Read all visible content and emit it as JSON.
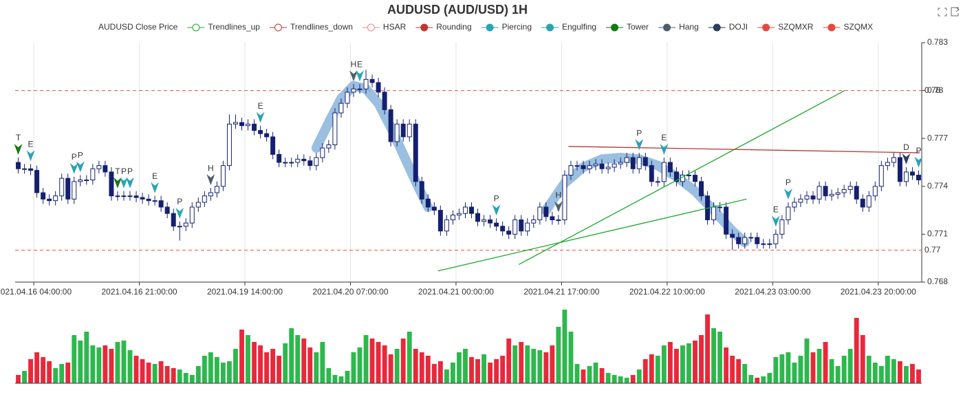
{
  "chart_data": {
    "type": "candlestick",
    "title": "AUDUSD (AUD/USD) 1H",
    "legend": [
      {
        "name": "AUDUSD Close Price",
        "color": "#14206e",
        "icon": "none"
      },
      {
        "name": "Trendlines_up",
        "color": "#1aaa2a",
        "icon": "hollow"
      },
      {
        "name": "Trendlines_down",
        "color": "#b33a35",
        "icon": "hollow"
      },
      {
        "name": "HSAR",
        "color": "#ee8888",
        "icon": "hollow"
      },
      {
        "name": "Rounding",
        "color": "#c23531",
        "icon": "filled"
      },
      {
        "name": "Piercing",
        "color": "#2aa3b5",
        "icon": "filled"
      },
      {
        "name": "Engulfing",
        "color": "#2aa3b5",
        "icon": "filled"
      },
      {
        "name": "Tower",
        "color": "#127a12",
        "icon": "filled"
      },
      {
        "name": "Hang",
        "color": "#4f5d6b",
        "icon": "filled"
      },
      {
        "name": "DOJI",
        "color": "#2c3e5a",
        "icon": "filled"
      },
      {
        "name": "SZQMXR",
        "color": "#e8483c",
        "icon": "filled"
      },
      {
        "name": "SZQMX",
        "color": "#e8483c",
        "icon": "filled"
      }
    ],
    "categories": [
      null,
      null,
      null,
      "2021.04.16 04:00:00",
      null,
      null,
      null,
      null,
      null,
      null,
      null,
      null,
      null,
      null,
      null,
      null,
      null,
      null,
      null,
      null,
      "2021.04.16 21:00:00",
      null,
      null,
      null,
      null,
      null,
      null,
      null,
      null,
      null,
      null,
      null,
      null,
      null,
      null,
      null,
      null,
      "2021.04.19 14:00:00",
      null,
      null,
      null,
      null,
      null,
      null,
      null,
      null,
      null,
      null,
      null,
      null,
      null,
      null,
      null,
      null,
      "2021.04.20 07:00:00",
      null,
      null,
      null,
      null,
      null,
      null,
      null,
      null,
      null,
      null,
      null,
      null,
      null,
      null,
      null,
      null,
      "2021.04.21 00:00:00",
      null,
      null,
      null,
      null,
      null,
      null,
      null,
      null,
      null,
      null,
      null,
      null,
      null,
      null,
      null,
      null,
      "2021.04.21 17:00:00",
      null,
      null,
      null,
      null,
      null,
      null,
      null,
      null,
      null,
      null,
      null,
      null,
      null,
      null,
      null,
      null,
      "2021.04.22 10:00:00",
      null,
      null,
      null,
      null,
      null,
      null,
      null,
      null,
      null,
      null,
      null,
      null,
      null,
      null,
      null,
      null,
      "2021.04.23 03:00:00",
      null,
      null,
      null,
      null,
      null,
      null,
      null,
      null,
      null,
      null,
      null,
      null,
      null,
      null,
      null,
      null,
      "2021.04.23 20:00:00",
      null,
      null,
      null,
      null,
      null,
      null
    ],
    "open": [
      0.7755,
      0.7751,
      0.7751,
      0.775,
      0.7736,
      0.7732,
      0.7731,
      0.7734,
      0.7745,
      0.7732,
      0.7743,
      0.7744,
      0.7744,
      0.7751,
      0.7753,
      0.7749,
      0.7734,
      0.7734,
      0.7734,
      0.7734,
      0.7733,
      0.7732,
      0.7731,
      0.7731,
      0.7727,
      0.7723,
      0.7715,
      0.7715,
      0.7717,
      0.7727,
      0.773,
      0.7734,
      0.7736,
      0.774,
      0.7753,
      0.7779,
      0.778,
      0.7778,
      0.7779,
      0.7775,
      0.7773,
      0.7771,
      0.776,
      0.7755,
      0.7755,
      0.7755,
      0.7757,
      0.7756,
      0.7753,
      0.7758,
      0.7764,
      0.7766,
      0.7786,
      0.7792,
      0.7799,
      0.7801,
      0.7801,
      0.7807,
      0.7805,
      0.7799,
      0.7788,
      0.7768,
      0.7779,
      0.7771,
      0.7779,
      0.7743,
      0.7732,
      0.7727,
      0.7725,
      0.7712,
      0.7719,
      0.7722,
      0.7723,
      0.7727,
      0.7723,
      0.7718,
      0.7719,
      0.7717,
      0.7715,
      0.7712,
      0.771,
      0.7719,
      0.7712,
      0.7717,
      0.7719,
      0.7727,
      0.7721,
      0.7719,
      0.7719,
      0.7747,
      0.7753,
      0.7753,
      0.7751,
      0.7753,
      0.7754,
      0.7751,
      0.7752,
      0.7754,
      0.7755,
      0.7758,
      0.7751,
      0.7758,
      0.7753,
      0.7743,
      0.7743,
      0.7755,
      0.7749,
      0.7743,
      0.7747,
      0.7747,
      0.7743,
      0.7734,
      0.7719,
      0.7727,
      0.7727,
      0.771,
      0.7708,
      0.7704,
      0.7708,
      0.7708,
      0.7704,
      0.7704,
      0.7704,
      0.771,
      0.7719,
      0.7727,
      0.773,
      0.7732,
      0.7734,
      0.7732,
      0.774,
      0.7734,
      0.7735,
      0.7736,
      0.7738,
      0.774,
      0.7732,
      0.7727,
      0.7734,
      0.774,
      0.7753,
      0.7755,
      0.7758,
      0.7743,
      0.7749,
      0.7747
    ],
    "high": [
      0.7758,
      0.7754,
      0.7754,
      0.7753,
      0.7739,
      0.7735,
      0.7737,
      0.7748,
      0.7748,
      0.7746,
      0.7747,
      0.7747,
      0.7754,
      0.7756,
      0.7756,
      0.7752,
      0.7737,
      0.7737,
      0.7737,
      0.7737,
      0.7736,
      0.7735,
      0.7734,
      0.7734,
      0.773,
      0.7726,
      0.7718,
      0.772,
      0.773,
      0.7733,
      0.7737,
      0.7739,
      0.7743,
      0.7756,
      0.7785,
      0.7785,
      0.7783,
      0.7782,
      0.7782,
      0.7778,
      0.7776,
      0.7774,
      0.7763,
      0.7758,
      0.7758,
      0.776,
      0.776,
      0.7759,
      0.7761,
      0.7767,
      0.7769,
      0.7789,
      0.7795,
      0.7802,
      0.7804,
      0.7804,
      0.7813,
      0.781,
      0.7808,
      0.7802,
      0.7791,
      0.7782,
      0.7782,
      0.7782,
      0.7782,
      0.7746,
      0.7735,
      0.773,
      0.7728,
      0.7722,
      0.7725,
      0.7726,
      0.773,
      0.773,
      0.7726,
      0.7722,
      0.7722,
      0.772,
      0.7718,
      0.7715,
      0.7722,
      0.7722,
      0.772,
      0.7722,
      0.773,
      0.773,
      0.7724,
      0.7722,
      0.775,
      0.7756,
      0.7756,
      0.7756,
      0.7756,
      0.7757,
      0.7757,
      0.7755,
      0.7757,
      0.7758,
      0.7761,
      0.7761,
      0.7761,
      0.7761,
      0.7756,
      0.7746,
      0.7758,
      0.7758,
      0.7752,
      0.775,
      0.775,
      0.775,
      0.7746,
      0.7737,
      0.773,
      0.773,
      0.773,
      0.7713,
      0.7711,
      0.7711,
      0.7711,
      0.7711,
      0.7707,
      0.7707,
      0.7713,
      0.7722,
      0.773,
      0.7733,
      0.7735,
      0.7737,
      0.7737,
      0.7743,
      0.7743,
      0.7738,
      0.7739,
      0.7741,
      0.7743,
      0.7743,
      0.7735,
      0.7737,
      0.7743,
      0.7756,
      0.7758,
      0.7761,
      0.7761,
      0.7752,
      0.7752,
      0.775
    ],
    "low": [
      0.7748,
      0.7748,
      0.7747,
      0.7733,
      0.7729,
      0.7728,
      0.7728,
      0.7731,
      0.7729,
      0.7729,
      0.774,
      0.7741,
      0.7741,
      0.7748,
      0.7746,
      0.7731,
      0.7731,
      0.7731,
      0.7731,
      0.773,
      0.7729,
      0.7728,
      0.7728,
      0.7724,
      0.772,
      0.7712,
      0.7706,
      0.7712,
      0.7714,
      0.7724,
      0.7727,
      0.7731,
      0.7733,
      0.7737,
      0.775,
      0.7776,
      0.7775,
      0.7775,
      0.7772,
      0.777,
      0.7768,
      0.7757,
      0.7752,
      0.7752,
      0.7752,
      0.7752,
      0.7753,
      0.775,
      0.775,
      0.7755,
      0.7761,
      0.7763,
      0.7783,
      0.7789,
      0.7796,
      0.7798,
      0.7798,
      0.7802,
      0.7796,
      0.7785,
      0.7765,
      0.7765,
      0.7768,
      0.7768,
      0.774,
      0.7729,
      0.7724,
      0.7722,
      0.7709,
      0.7709,
      0.7716,
      0.7719,
      0.772,
      0.772,
      0.7715,
      0.7715,
      0.7714,
      0.7712,
      0.7709,
      0.7707,
      0.7707,
      0.7709,
      0.7709,
      0.7714,
      0.7716,
      0.7718,
      0.7716,
      0.7716,
      0.7716,
      0.7744,
      0.775,
      0.7748,
      0.7748,
      0.775,
      0.7748,
      0.7748,
      0.7749,
      0.7751,
      0.7752,
      0.7748,
      0.7748,
      0.775,
      0.774,
      0.774,
      0.774,
      0.7746,
      0.774,
      0.774,
      0.7744,
      0.774,
      0.7731,
      0.7716,
      0.7716,
      0.7724,
      0.7707,
      0.77,
      0.7701,
      0.7701,
      0.7705,
      0.7701,
      0.7701,
      0.7701,
      0.7701,
      0.7707,
      0.7716,
      0.7724,
      0.7727,
      0.7729,
      0.7729,
      0.7729,
      0.7731,
      0.7731,
      0.7732,
      0.7733,
      0.7735,
      0.7729,
      0.7724,
      0.7724,
      0.7731,
      0.7737,
      0.775,
      0.7752,
      0.774,
      0.774,
      0.7744,
      0.7741
    ],
    "close": [
      0.7751,
      0.7751,
      0.775,
      0.7736,
      0.7732,
      0.7731,
      0.7734,
      0.7745,
      0.7732,
      0.7743,
      0.7744,
      0.7744,
      0.7751,
      0.7753,
      0.7749,
      0.7734,
      0.7734,
      0.7734,
      0.7734,
      0.7733,
      0.7732,
      0.7731,
      0.7731,
      0.7727,
      0.7723,
      0.7715,
      0.7715,
      0.7717,
      0.7727,
      0.773,
      0.7734,
      0.7736,
      0.774,
      0.7753,
      0.7779,
      0.778,
      0.7778,
      0.7779,
      0.7775,
      0.7773,
      0.7771,
      0.776,
      0.7755,
      0.7755,
      0.7755,
      0.7757,
      0.7756,
      0.7753,
      0.7758,
      0.7764,
      0.7766,
      0.7786,
      0.7792,
      0.7799,
      0.7801,
      0.7801,
      0.7807,
      0.7805,
      0.7799,
      0.7788,
      0.7768,
      0.7779,
      0.7771,
      0.7779,
      0.7743,
      0.7732,
      0.7727,
      0.7725,
      0.7712,
      0.7719,
      0.7722,
      0.7723,
      0.7727,
      0.7723,
      0.7718,
      0.7719,
      0.7717,
      0.7715,
      0.7712,
      0.771,
      0.7719,
      0.7712,
      0.7717,
      0.7719,
      0.7727,
      0.7721,
      0.7719,
      0.7719,
      0.7747,
      0.7753,
      0.7753,
      0.7751,
      0.7753,
      0.7754,
      0.7751,
      0.7752,
      0.7754,
      0.7755,
      0.7758,
      0.7751,
      0.7758,
      0.7753,
      0.7743,
      0.7743,
      0.7755,
      0.7749,
      0.7743,
      0.7747,
      0.7747,
      0.7743,
      0.7734,
      0.7719,
      0.7727,
      0.7727,
      0.771,
      0.7708,
      0.7704,
      0.7708,
      0.7708,
      0.7704,
      0.7704,
      0.7704,
      0.771,
      0.7719,
      0.7727,
      0.773,
      0.7732,
      0.7734,
      0.7732,
      0.774,
      0.7734,
      0.7735,
      0.7736,
      0.7738,
      0.774,
      0.7732,
      0.7727,
      0.7734,
      0.774,
      0.7753,
      0.7755,
      0.7758,
      0.7743,
      0.7749,
      0.7747,
      0.7744
    ],
    "volume": [
      12,
      18,
      35,
      45,
      38,
      32,
      22,
      28,
      30,
      70,
      62,
      75,
      55,
      52,
      55,
      50,
      60,
      62,
      48,
      40,
      35,
      30,
      28,
      32,
      25,
      22,
      20,
      15,
      12,
      25,
      40,
      45,
      38,
      30,
      32,
      50,
      78,
      70,
      60,
      55,
      45,
      50,
      40,
      58,
      80,
      70,
      65,
      52,
      45,
      60,
      22,
      12,
      10,
      18,
      45,
      52,
      70,
      65,
      60,
      55,
      42,
      50,
      65,
      75,
      50,
      45,
      40,
      28,
      32,
      20,
      30,
      45,
      50,
      38,
      35,
      42,
      30,
      35,
      40,
      65,
      55,
      60,
      55,
      50,
      48,
      45,
      55,
      82,
      107,
      75,
      28,
      20,
      25,
      30,
      22,
      15,
      12,
      10,
      8,
      12,
      20,
      35,
      42,
      40,
      55,
      60,
      50,
      55,
      58,
      62,
      70,
      100,
      80,
      75,
      52,
      40,
      35,
      28,
      12,
      8,
      10,
      15,
      38,
      42,
      45,
      30,
      40,
      65,
      45,
      50,
      60,
      35,
      25,
      40,
      50,
      95,
      70,
      40,
      30,
      25,
      40,
      35,
      32,
      25,
      28,
      20
    ],
    "up_color": "#ffffff",
    "up_border": "#14206e",
    "down_color": "#14206e",
    "volume_up_color": "#2db84d",
    "volume_down_color": "#e8293a",
    "ylim": [
      0.768,
      0.783
    ],
    "yticks": [
      0.768,
      0.771,
      0.774,
      0.777,
      0.78,
      0.783
    ],
    "grid": true,
    "hlines": [
      {
        "value": 0.78,
        "color": "#ee4a4a"
      },
      {
        "value": 0.77,
        "color": "#ee4a4a"
      }
    ],
    "trendlines_up": [
      {
        "x": [
          67.6,
          117.3
        ],
        "y": [
          0.7687,
          0.7732
        ]
      },
      {
        "x": [
          80.6,
          133.1
        ],
        "y": [
          0.7691,
          0.78
        ]
      }
    ],
    "trendlines_down": [
      {
        "x": [
          88.6,
          145.2
        ],
        "y": [
          0.7765,
          0.7761
        ]
      }
    ],
    "rounding": [
      {
        "x": [
          48,
          50,
          52,
          54,
          56,
          58,
          60,
          62,
          64,
          66
        ],
        "y": [
          0.7764,
          0.778,
          0.7795,
          0.7803,
          0.7801,
          0.7792,
          0.7777,
          0.776,
          0.7743,
          0.7727
        ]
      },
      {
        "x": [
          85,
          88,
          91,
          94,
          97,
          100,
          103,
          106,
          109,
          112,
          115,
          117
        ],
        "y": [
          0.7725,
          0.7742,
          0.7752,
          0.7757,
          0.7758,
          0.7757,
          0.7753,
          0.7746,
          0.7737,
          0.7725,
          0.7712,
          0.7705
        ]
      }
    ],
    "rounding_color": "#8ab4dc",
    "trend_up_color": "#1aaa2a",
    "trend_down_color": "#b33a35",
    "patterns": [
      {
        "x": 0,
        "label": "T",
        "color": "#127a12"
      },
      {
        "x": 2,
        "label": "E",
        "color": "#2aa3b5"
      },
      {
        "x": 9,
        "label": "P",
        "color": "#2aa3b5"
      },
      {
        "x": 10,
        "label": "P",
        "color": "#2aa3b5"
      },
      {
        "x": 16,
        "label": "T",
        "color": "#127a12"
      },
      {
        "x": 17,
        "label": "P",
        "color": "#2aa3b5"
      },
      {
        "x": 18,
        "label": "P",
        "color": "#2aa3b5"
      },
      {
        "x": 22,
        "label": "E",
        "color": "#2aa3b5"
      },
      {
        "x": 26,
        "label": "P",
        "color": "#2aa3b5"
      },
      {
        "x": 31,
        "label": "H",
        "color": "#4f5d6b"
      },
      {
        "x": 39,
        "label": "E",
        "color": "#2aa3b5"
      },
      {
        "x": 54,
        "label": "H",
        "color": "#4f5d6b"
      },
      {
        "x": 55,
        "label": "E",
        "color": "#2aa3b5"
      },
      {
        "x": 77,
        "label": "P",
        "color": "#2aa3b5"
      },
      {
        "x": 87,
        "label": "H",
        "color": "#4f5d6b"
      },
      {
        "x": 100,
        "label": "P",
        "color": "#2aa3b5"
      },
      {
        "x": 104,
        "label": "E",
        "color": "#2aa3b5"
      },
      {
        "x": 122,
        "label": "E",
        "color": "#2aa3b5"
      },
      {
        "x": 124,
        "label": "P",
        "color": "#2aa3b5"
      },
      {
        "x": 143,
        "label": "D",
        "color": "#2c3e5a"
      },
      {
        "x": 145,
        "label": "P",
        "color": "#2aa3b5"
      }
    ]
  }
}
